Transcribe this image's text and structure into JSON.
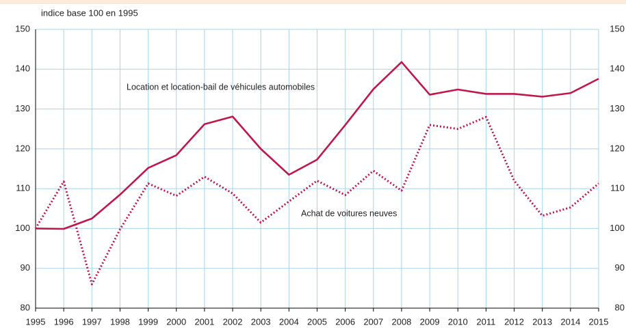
{
  "chart_data": {
    "type": "line",
    "y_label": "indice base 100 en 1995",
    "annotations": [
      "Location et location-bail de véhicules automobiles",
      "Achat de voitures neuves"
    ],
    "categories": [
      "1995",
      "1996",
      "1997",
      "1998",
      "1999",
      "2000",
      "2001",
      "2002",
      "2003",
      "2004",
      "2005",
      "2006",
      "2007",
      "2008",
      "2009",
      "2010",
      "2011",
      "2012",
      "2013",
      "2014",
      "2015"
    ],
    "series": [
      {
        "name": "Location et location-bail de véhicules automobiles",
        "color": "#c0174a",
        "dash": "solid",
        "values": [
          100,
          99.9,
          102.5,
          108.5,
          115.2,
          118.4,
          126.2,
          128.1,
          120,
          113.5,
          117.3,
          126,
          135,
          141.8,
          133.6,
          134.9,
          133.8,
          133.8,
          133.1,
          134,
          137.6
        ]
      },
      {
        "name": "Achat de voitures neuves",
        "color": "#c0174a",
        "dash": "dotted",
        "values": [
          100,
          111.8,
          86,
          99.8,
          111.3,
          108.2,
          113,
          108.8,
          101.5,
          106.8,
          112,
          108.4,
          114.5,
          109.5,
          126,
          125,
          128,
          112,
          103.2,
          105.3,
          111.3
        ]
      }
    ],
    "ylim": [
      80,
      150
    ],
    "yticks": [
      80,
      90,
      100,
      110,
      120,
      130,
      140,
      150
    ],
    "grid": true
  }
}
